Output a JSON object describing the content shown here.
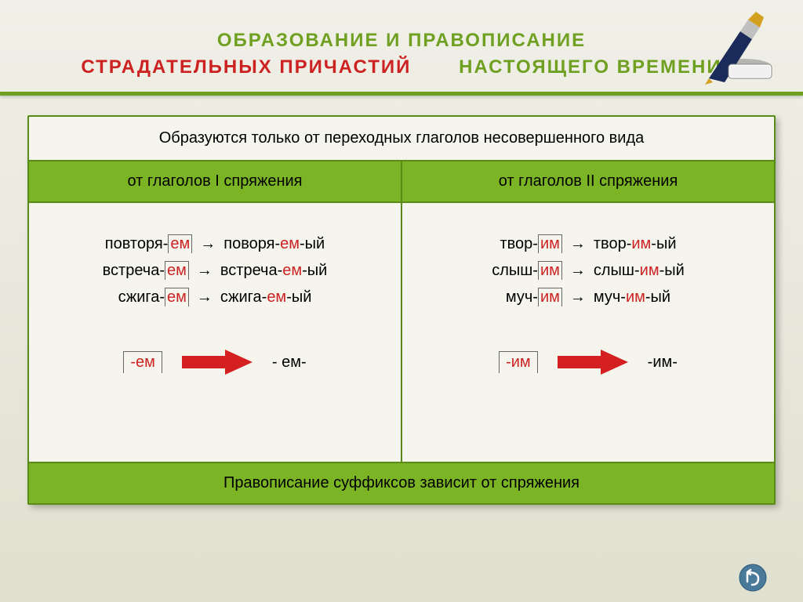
{
  "title": {
    "line1": "ОБРАЗОВАНИЕ   И   ПРАВОПИСАНИЕ",
    "line2_red": "СТРАДАТЕЛЬНЫХ   ПРИЧАСТИЙ",
    "line2_green": "НАСТОЯЩЕГО  ВРЕМЕНИ"
  },
  "top_note": "Образуются только от переходных глаголов несовершенного вида",
  "headers": {
    "left": "от глаголов  I  спряжения",
    "right": "от глаголов  II  спряжения"
  },
  "left_examples": [
    {
      "stem1": "повторя-",
      "suf1": "ем",
      "stem2": "поворя-",
      "suf2": "ем",
      "end": "-ый"
    },
    {
      "stem1": "встреча-",
      "suf1": "ем",
      "stem2": "встреча-",
      "suf2": "ем",
      "end": "-ый"
    },
    {
      "stem1": "сжига-",
      "suf1": "ем",
      "stem2": "сжига-",
      "suf2": "ем",
      "end": "-ый"
    }
  ],
  "right_examples": [
    {
      "stem1": "твор-",
      "suf1": "им",
      "stem2": "твор-",
      "suf2": "им",
      "end": "-ый"
    },
    {
      "stem1": "слыш-",
      "suf1": "им",
      "stem2": "слыш-",
      "suf2": "им",
      "end": "-ый"
    },
    {
      "stem1": "муч-",
      "suf1": "им",
      "stem2": "муч-",
      "suf2": "им",
      "end": "-ый"
    }
  ],
  "suffix_map": {
    "left_from": "-ем",
    "left_to": "- ем-",
    "right_from": "-им",
    "right_to": "-им-"
  },
  "bottom_note": "Правописание суффиксов зависит от спряжения",
  "colors": {
    "green": "#6fa021",
    "bright_green": "#7bb526",
    "red": "#c22",
    "arrow_red": "#d42020"
  }
}
